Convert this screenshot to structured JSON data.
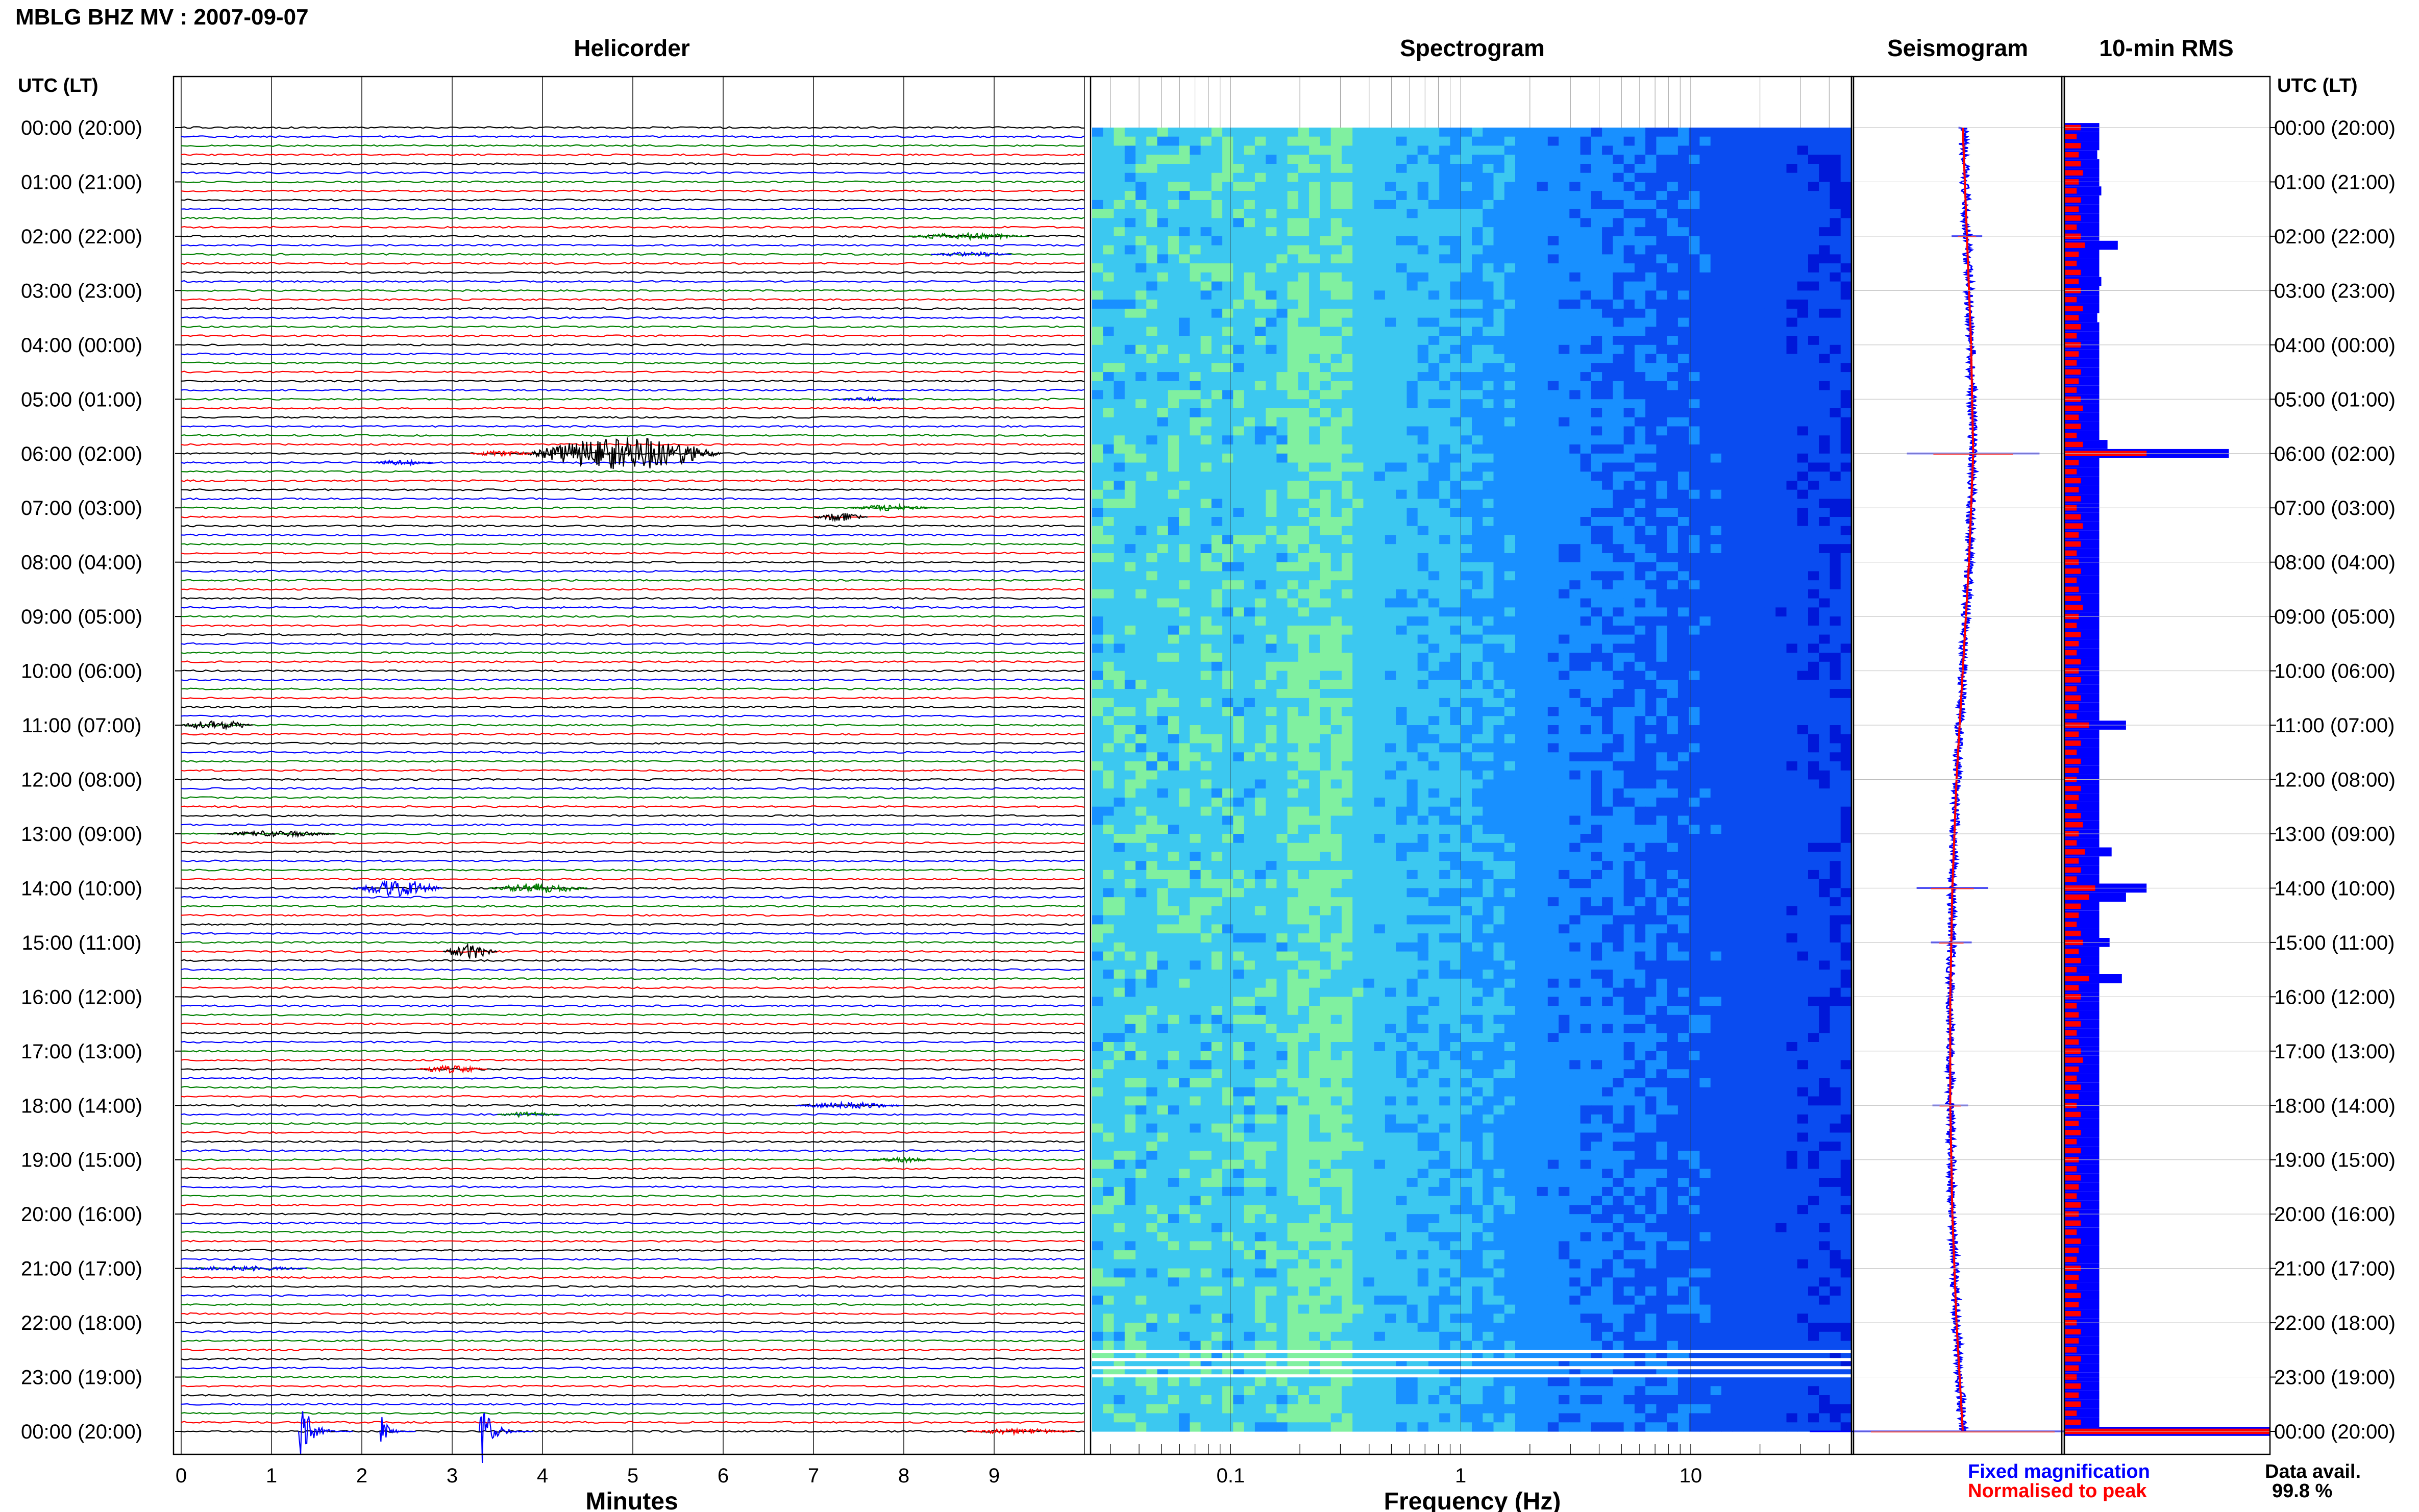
{
  "header": {
    "station_title": "MBLG BHZ MV : 2007-09-07",
    "time_axis_label": "UTC (LT)"
  },
  "panels": {
    "helicorder_title": "Helicorder",
    "spectrogram_title": "Spectrogram",
    "seismogram_title": "Seismogram",
    "rms_title": "10-min RMS"
  },
  "legend": {
    "fixed_label": "Fixed magnification",
    "fixed_color": "#0000ff",
    "normalised_label": "Normalised to peak",
    "normalised_color": "#ff0000"
  },
  "data_avail": {
    "label": "Data avail.",
    "value": "99.8 %"
  },
  "chart_data": [
    {
      "type": "line",
      "panel": "helicorder",
      "xlabel": "Minutes",
      "x_ticks": [
        "0",
        "1",
        "2",
        "3",
        "4",
        "5",
        "6",
        "7",
        "8",
        "9"
      ],
      "xlim": [
        0,
        10
      ],
      "time_labels": [
        "00:00 (20:00)",
        "01:00 (21:00)",
        "02:00 (22:00)",
        "03:00 (23:00)",
        "04:00 (00:00)",
        "05:00 (01:00)",
        "06:00 (02:00)",
        "07:00 (03:00)",
        "08:00 (04:00)",
        "09:00 (05:00)",
        "10:00 (06:00)",
        "11:00 (07:00)",
        "12:00 (08:00)",
        "13:00 (09:00)",
        "14:00 (10:00)",
        "15:00 (11:00)",
        "16:00 (12:00)",
        "17:00 (13:00)",
        "18:00 (14:00)",
        "19:00 (15:00)",
        "20:00 (16:00)",
        "21:00 (17:00)",
        "22:00 (18:00)",
        "23:00 (19:00)",
        "00:00 (20:00)"
      ],
      "trace_colors": [
        "#000000",
        "#0000ff",
        "#008000",
        "#ff0000"
      ],
      "events": [
        {
          "hour": 2,
          "line": 0,
          "minute_start": 8.0,
          "minute_end": 9.4,
          "color": "#008000",
          "amp": 0.35
        },
        {
          "hour": 2,
          "line": 2,
          "minute_start": 8.3,
          "minute_end": 9.2,
          "color": "#0000ff",
          "amp": 0.25
        },
        {
          "hour": 5,
          "line": 0,
          "minute_start": 7.2,
          "minute_end": 8.0,
          "color": "#0000ff",
          "amp": 0.2
        },
        {
          "hour": 6,
          "line": 0,
          "minute_start": 3.8,
          "minute_end": 6.0,
          "color": "#000000",
          "amp": 1.8
        },
        {
          "hour": 6,
          "line": 0,
          "minute_start": 3.2,
          "minute_end": 3.9,
          "color": "#ff0000",
          "amp": 0.3
        },
        {
          "hour": 6,
          "line": 1,
          "minute_start": 2.1,
          "minute_end": 2.8,
          "color": "#0000ff",
          "amp": 0.3
        },
        {
          "hour": 7,
          "line": 0,
          "minute_start": 7.4,
          "minute_end": 8.3,
          "color": "#008000",
          "amp": 0.35
        },
        {
          "hour": 7,
          "line": 1,
          "minute_start": 7.0,
          "minute_end": 7.6,
          "color": "#000000",
          "amp": 0.45
        },
        {
          "hour": 11,
          "line": 0,
          "minute_start": 0.0,
          "minute_end": 0.8,
          "color": "#000000",
          "amp": 0.55
        },
        {
          "hour": 13,
          "line": 0,
          "minute_start": 0.4,
          "minute_end": 1.7,
          "color": "#000000",
          "amp": 0.35
        },
        {
          "hour": 14,
          "line": 0,
          "minute_start": 1.9,
          "minute_end": 2.9,
          "color": "#0000ff",
          "amp": 0.9
        },
        {
          "hour": 14,
          "line": 0,
          "minute_start": 3.4,
          "minute_end": 4.5,
          "color": "#008000",
          "amp": 0.55
        },
        {
          "hour": 15,
          "line": 1,
          "minute_start": 2.9,
          "minute_end": 3.5,
          "color": "#000000",
          "amp": 0.8
        },
        {
          "hour": 17,
          "line": 2,
          "minute_start": 2.6,
          "minute_end": 3.4,
          "color": "#ff0000",
          "amp": 0.4
        },
        {
          "hour": 18,
          "line": 0,
          "minute_start": 6.8,
          "minute_end": 8.0,
          "color": "#0000ff",
          "amp": 0.35
        },
        {
          "hour": 18,
          "line": 1,
          "minute_start": 3.5,
          "minute_end": 4.2,
          "color": "#008000",
          "amp": 0.3
        },
        {
          "hour": 19,
          "line": 0,
          "minute_start": 7.6,
          "minute_end": 8.4,
          "color": "#008000",
          "amp": 0.25
        },
        {
          "hour": 21,
          "line": 0,
          "minute_start": 0.0,
          "minute_end": 1.4,
          "color": "#0000ff",
          "amp": 0.25
        },
        {
          "hour": 24,
          "line": 0,
          "minute_start": 1.3,
          "minute_end": 1.9,
          "color": "#0000ff",
          "amp": 5.5
        },
        {
          "hour": 24,
          "line": 0,
          "minute_start": 2.2,
          "minute_end": 2.6,
          "color": "#0000ff",
          "amp": 2.5
        },
        {
          "hour": 24,
          "line": 0,
          "minute_start": 3.3,
          "minute_end": 3.9,
          "color": "#0000ff",
          "amp": 5.2
        },
        {
          "hour": 24,
          "line": 0,
          "minute_start": 8.7,
          "minute_end": 9.9,
          "color": "#ff0000",
          "amp": 0.3
        }
      ]
    },
    {
      "type": "heatmap",
      "panel": "spectrogram",
      "xlabel": "Frequency (Hz)",
      "x_scale": "log",
      "xlim": [
        0.025,
        50
      ],
      "x_ticks": [
        {
          "value": 0.1,
          "label": "0.1"
        },
        {
          "value": 1,
          "label": "1"
        },
        {
          "value": 10,
          "label": "10"
        }
      ],
      "colormap": [
        "#0018d8",
        "#0a4cf0",
        "#1890ff",
        "#3cc8f0",
        "#80f0a0"
      ],
      "gaps_hours": [
        22.5,
        22.65,
        22.8,
        22.95
      ]
    },
    {
      "type": "line",
      "panel": "seismogram",
      "series": [
        {
          "name": "Fixed magnification",
          "color": "#0000ff"
        },
        {
          "name": "Normalised to peak",
          "color": "#ff0000"
        }
      ],
      "drift_offsets": [
        0.0,
        0.02,
        0.04,
        0.05,
        0.03,
        0.0,
        -0.03,
        -0.05,
        -0.06,
        -0.06,
        -0.05,
        -0.03,
        0.0
      ]
    },
    {
      "type": "bar",
      "panel": "rms",
      "orientation": "horizontal",
      "series": [
        {
          "name": "Fixed magnification",
          "color": "#0000ff",
          "values": [
            0.17,
            0.17,
            0.17,
            0.16,
            0.17,
            0.17,
            0.17,
            0.18,
            0.17,
            0.17,
            0.17,
            0.17,
            0.17,
            0.26,
            0.17,
            0.17,
            0.17,
            0.18,
            0.17,
            0.17,
            0.17,
            0.16,
            0.17,
            0.17,
            0.17,
            0.17,
            0.17,
            0.17,
            0.17,
            0.17,
            0.17,
            0.17,
            0.17,
            0.17,
            0.17,
            0.21,
            0.8,
            0.17,
            0.17,
            0.17,
            0.17,
            0.17,
            0.17,
            0.17,
            0.17,
            0.17,
            0.17,
            0.17,
            0.17,
            0.17,
            0.17,
            0.17,
            0.17,
            0.17,
            0.17,
            0.17,
            0.17,
            0.17,
            0.17,
            0.17,
            0.17,
            0.17,
            0.17,
            0.17,
            0.17,
            0.17,
            0.3,
            0.17,
            0.17,
            0.17,
            0.17,
            0.17,
            0.17,
            0.17,
            0.17,
            0.17,
            0.17,
            0.17,
            0.17,
            0.17,
            0.23,
            0.17,
            0.17,
            0.17,
            0.4,
            0.3,
            0.17,
            0.17,
            0.17,
            0.17,
            0.22,
            0.17,
            0.17,
            0.17,
            0.28,
            0.17,
            0.17,
            0.17,
            0.17,
            0.17,
            0.17,
            0.17,
            0.17,
            0.17,
            0.17,
            0.17,
            0.17,
            0.17,
            0.17,
            0.17,
            0.17,
            0.17,
            0.17,
            0.17,
            0.17,
            0.17,
            0.17,
            0.17,
            0.17,
            0.17,
            0.17,
            0.17,
            0.17,
            0.17,
            0.17,
            0.17,
            0.17,
            0.17,
            0.17,
            0.17,
            0.17,
            0.17,
            0.17,
            0.17,
            0.17,
            0.17,
            0.17,
            0.17,
            0.17,
            0.17,
            0.17,
            0.17,
            0.17,
            0.17,
            1.1
          ]
        },
        {
          "name": "Normalised to peak",
          "color": "#ff0000",
          "values": [
            0.08,
            0.06,
            0.08,
            0.07,
            0.08,
            0.09,
            0.07,
            0.06,
            0.08,
            0.07,
            0.08,
            0.06,
            0.08,
            0.1,
            0.07,
            0.06,
            0.08,
            0.07,
            0.08,
            0.06,
            0.09,
            0.07,
            0.08,
            0.06,
            0.08,
            0.07,
            0.06,
            0.08,
            0.07,
            0.06,
            0.08,
            0.09,
            0.07,
            0.08,
            0.06,
            0.09,
            0.4,
            0.07,
            0.06,
            0.08,
            0.07,
            0.08,
            0.06,
            0.08,
            0.09,
            0.07,
            0.08,
            0.06,
            0.07,
            0.08,
            0.06,
            0.07,
            0.08,
            0.09,
            0.07,
            0.06,
            0.08,
            0.07,
            0.06,
            0.08,
            0.07,
            0.08,
            0.06,
            0.08,
            0.07,
            0.06,
            0.12,
            0.07,
            0.08,
            0.06,
            0.08,
            0.07,
            0.06,
            0.08,
            0.07,
            0.06,
            0.08,
            0.09,
            0.07,
            0.06,
            0.1,
            0.07,
            0.08,
            0.06,
            0.15,
            0.12,
            0.08,
            0.07,
            0.06,
            0.08,
            0.09,
            0.07,
            0.08,
            0.06,
            0.12,
            0.07,
            0.08,
            0.06,
            0.07,
            0.08,
            0.06,
            0.07,
            0.08,
            0.09,
            0.07,
            0.06,
            0.08,
            0.07,
            0.06,
            0.08,
            0.07,
            0.08,
            0.06,
            0.08,
            0.07,
            0.06,
            0.08,
            0.07,
            0.06,
            0.08,
            0.07,
            0.08,
            0.06,
            0.08,
            0.07,
            0.06,
            0.08,
            0.07,
            0.06,
            0.08,
            0.07,
            0.08,
            0.06,
            0.08,
            0.07,
            0.06,
            0.08,
            0.07,
            0.06,
            0.08,
            0.07,
            0.08,
            0.06,
            0.08,
            1.1
          ]
        }
      ]
    }
  ]
}
